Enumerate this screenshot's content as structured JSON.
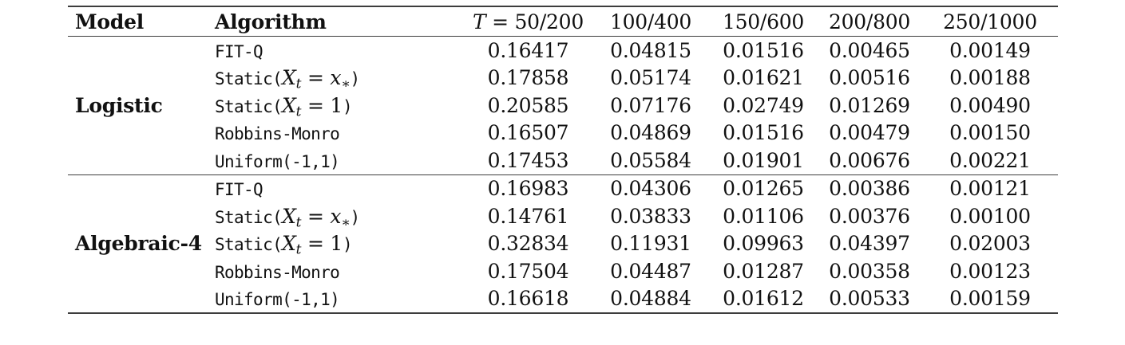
{
  "table": {
    "columns": [
      {
        "label": "Model"
      },
      {
        "label": "Algorithm"
      },
      {
        "math": "T",
        "label": " = 50/200"
      },
      {
        "label": "100/400"
      },
      {
        "label": "150/600"
      },
      {
        "label": "200/800"
      },
      {
        "label": "250/1000"
      }
    ],
    "groups": [
      {
        "model": "Logistic",
        "rows": [
          {
            "alg": {
              "pre": "FIT-Q"
            },
            "values": [
              "0.16417",
              "0.04815",
              "0.01516",
              "0.00465",
              "0.00149"
            ]
          },
          {
            "alg": {
              "pre": "Static(",
              "m1": "X",
              "s1": "t",
              "mid": " = ",
              "m2": "x",
              "s2": "∗",
              "post": ")"
            },
            "values": [
              "0.17858",
              "0.05174",
              "0.01621",
              "0.00516",
              "0.00188"
            ]
          },
          {
            "alg": {
              "pre": "Static(",
              "m1": "X",
              "s1": "t",
              "mid": " = 1",
              "post": ")"
            },
            "values": [
              "0.20585",
              "0.07176",
              "0.02749",
              "0.01269",
              "0.00490"
            ]
          },
          {
            "alg": {
              "pre": "Robbins-Monro"
            },
            "values": [
              "0.16507",
              "0.04869",
              "0.01516",
              "0.00479",
              "0.00150"
            ]
          },
          {
            "alg": {
              "pre": "Uniform(-1,1)"
            },
            "values": [
              "0.17453",
              "0.05584",
              "0.01901",
              "0.00676",
              "0.00221"
            ]
          }
        ]
      },
      {
        "model": "Algebraic-4",
        "rows": [
          {
            "alg": {
              "pre": "FIT-Q"
            },
            "values": [
              "0.16983",
              "0.04306",
              "0.01265",
              "0.00386",
              "0.00121"
            ]
          },
          {
            "alg": {
              "pre": "Static(",
              "m1": "X",
              "s1": "t",
              "mid": " = ",
              "m2": "x",
              "s2": "∗",
              "post": ")"
            },
            "values": [
              "0.14761",
              "0.03833",
              "0.01106",
              "0.00376",
              "0.00100"
            ]
          },
          {
            "alg": {
              "pre": "Static(",
              "m1": "X",
              "s1": "t",
              "mid": " = 1",
              "post": ")"
            },
            "values": [
              "0.32834",
              "0.11931",
              "0.09963",
              "0.04397",
              "0.02003"
            ]
          },
          {
            "alg": {
              "pre": "Robbins-Monro"
            },
            "values": [
              "0.17504",
              "0.04487",
              "0.01287",
              "0.00358",
              "0.00123"
            ]
          },
          {
            "alg": {
              "pre": "Uniform(-1,1)"
            },
            "values": [
              "0.16618",
              "0.04884",
              "0.01612",
              "0.00533",
              "0.00159"
            ]
          }
        ]
      }
    ]
  }
}
